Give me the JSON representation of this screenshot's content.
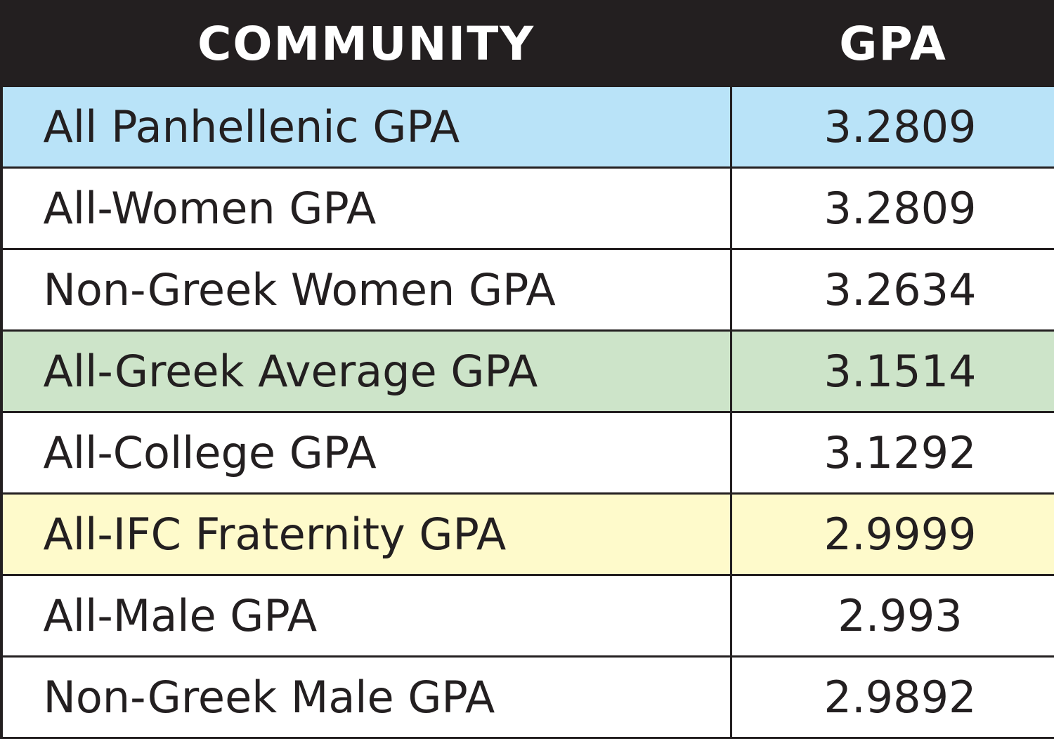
{
  "chart_data": {
    "type": "table",
    "columns": [
      "COMMUNITY",
      "GPA"
    ],
    "rows": [
      {
        "community": "All Panhellenic GPA",
        "gpa": "3.2809",
        "highlight": "#b9e3f8"
      },
      {
        "community": "All-Women GPA",
        "gpa": "3.2809",
        "highlight": "#ffffff"
      },
      {
        "community": "Non-Greek Women GPA",
        "gpa": "3.2634",
        "highlight": "#ffffff"
      },
      {
        "community": "All-Greek Average GPA",
        "gpa": "3.1514",
        "highlight": "#cde4c9"
      },
      {
        "community": "All-College GPA",
        "gpa": "3.1292",
        "highlight": "#ffffff"
      },
      {
        "community": "All-IFC Fraternity GPA",
        "gpa": "2.9999",
        "highlight": "#fefacb"
      },
      {
        "community": "All-Male GPA",
        "gpa": "2.993",
        "highlight": "#ffffff"
      },
      {
        "community": "Non-Greek Male GPA",
        "gpa": "2.9892",
        "highlight": "#ffffff"
      }
    ]
  },
  "colors": {
    "header_bg": "#231f20",
    "header_text": "#ffffff",
    "border": "#231f20",
    "body_text": "#231f20"
  }
}
